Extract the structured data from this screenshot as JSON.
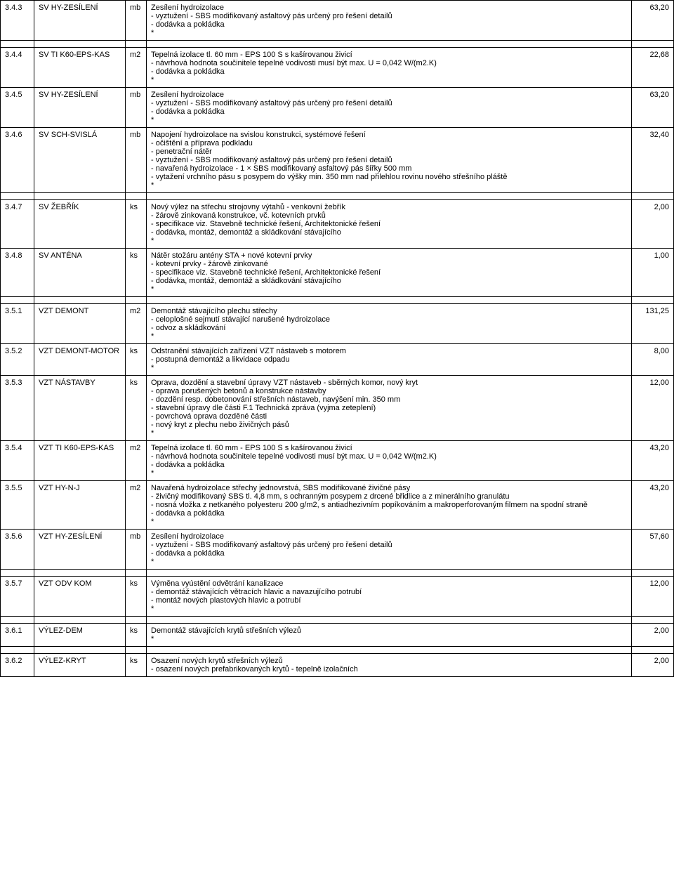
{
  "rows": [
    {
      "code": "3.4.3",
      "name": "SV HY-ZESÍLENÍ",
      "unit": "mb",
      "lines": [
        "Zesílení hydroizolace",
        "- vyztužení - SBS modifikovaný asfaltový pás určený pro řešení detailů",
        "- dodávka a pokládka",
        "*"
      ],
      "qty": "63,20"
    },
    {
      "code": "3.4.4",
      "name": "SV TI K60-EPS-KAS",
      "unit": "m2",
      "lines": [
        "Tepelná izolace tl. 60 mm - EPS 100 S s kašírovanou živicí",
        "- návrhová hodnota součinitele tepelné vodivosti musí být max. U = 0,042 W/(m2.K)",
        "- dodávka a pokládka",
        "*"
      ],
      "qty": "22,68"
    },
    {
      "code": "3.4.5",
      "name": "SV HY-ZESÍLENÍ",
      "unit": "mb",
      "lines": [
        "Zesílení hydroizolace",
        "- vyztužení - SBS modifikovaný asfaltový pás určený pro řešení detailů",
        "- dodávka a pokládka",
        "*"
      ],
      "qty": "63,20"
    },
    {
      "code": "3.4.6",
      "name": "SV SCH-SVISLÁ",
      "unit": "mb",
      "lines": [
        "Napojení hydroizolace na svislou konstrukci, systémové řešení",
        "- očištění a příprava podkladu",
        "- penetrační nátěr",
        "- vyztužení - SBS modifikovaný asfaltový pás určený pro řešení detailů",
        "- navařená hydroizolace - 1 × SBS modifikovaný asfaltový pás šířky 500 mm",
        "- vytažení vrchního pásu s posypem do výšky min. 350 mm nad přilehlou rovinu nového střešního pláště",
        "*"
      ],
      "qty": "32,40"
    },
    {
      "code": "3.4.7",
      "name": "SV ŽEBŘÍK",
      "unit": "ks",
      "lines": [
        "Nový výlez na střechu strojovny výtahů - venkovní žebřík",
        "- žárově zinkovaná konstrukce, vč. kotevních prvků",
        "- specifikace viz. Stavebně technické řešení, Architektonické řešení",
        "- dodávka, montáž, demontáž a skládkování stávajícího",
        "*"
      ],
      "qty": "2,00"
    },
    {
      "code": "3.4.8",
      "name": "SV ANTÉNA",
      "unit": "ks",
      "lines": [
        "Nátěr stožáru antény STA + nové kotevní prvky",
        "- kotevní prvky - žárově zinkované",
        "- specifikace viz. Stavebně technické řešení, Architektonické řešení",
        "- dodávka, montáž, demontáž a skládkování stávajícího",
        "*"
      ],
      "qty": "1,00"
    },
    {
      "code": "3.5.1",
      "name": "VZT DEMONT",
      "unit": "m2",
      "lines": [
        "Demontáž stávajícího plechu střechy",
        "- celoplošné sejmutí stávající narušené hydroizolace",
        "- odvoz a skládkování",
        "*"
      ],
      "qty": "131,25"
    },
    {
      "code": "3.5.2",
      "name": "VZT DEMONT-MOTOR",
      "unit": "ks",
      "lines": [
        "Odstranění stávajících zařízení VZT nástaveb s motorem",
        "- postupná demontáž a likvidace odpadu",
        "*"
      ],
      "qty": "8,00"
    },
    {
      "code": "3.5.3",
      "name": "VZT NÁSTAVBY",
      "unit": "ks",
      "lines": [
        "Oprava, dozdění a stavební úpravy VZT nástaveb - sběrných komor, nový kryt",
        "- oprava porušených betonů a konstrukce nástavby",
        "- dozdění resp. dobetonování střešních nástaveb, navýšení min. 350 mm",
        "- stavební úpravy dle části F.1 Technická zpráva (vyjma zeteplení)",
        "- povrchová oprava dozděné části",
        "- nový kryt z plechu nebo živičných pásů",
        "*"
      ],
      "qty": "12,00"
    },
    {
      "code": "3.5.4",
      "name": "VZT TI K60-EPS-KAS",
      "unit": "m2",
      "lines": [
        "Tepelná izolace tl. 60 mm - EPS 100 S s kašírovanou živicí",
        "- návrhová hodnota součinitele tepelné vodivosti musí být max. U = 0,042 W/(m2.K)",
        "- dodávka a pokládka",
        "*"
      ],
      "qty": "43,20"
    },
    {
      "code": "3.5.5",
      "name": "VZT HY-N-J",
      "unit": "m2",
      "lines": [
        "Navařená hydroizolace střechy jednovrstvá, SBS modifikované živičné pásy",
        "- živičný modifikovaný SBS tl. 4,8 mm, s ochranným posypem z drcené břidlice a z minerálního granulátu",
        "- nosná vložka z netkaného polyesteru 200 g/m2, s antiadhezivním popíkováním a makroperforovaným filmem na spodní straně",
        "- dodávka a pokládka",
        "*"
      ],
      "qty": "43,20"
    },
    {
      "code": "3.5.6",
      "name": "VZT HY-ZESÍLENÍ",
      "unit": "mb",
      "lines": [
        "Zesílení hydroizolace",
        "- vyztužení - SBS modifikovaný asfaltový pás určený pro řešení detailů",
        "- dodávka a pokládka",
        "*"
      ],
      "qty": "57,60"
    },
    {
      "code": "3.5.7",
      "name": "VZT ODV KOM",
      "unit": "ks",
      "lines": [
        "Výměna vyústění odvětrání kanalizace",
        "- demontáž stávajících větracích hlavic a navazujícího potrubí",
        "-  montáž nových plastových hlavic a potrubí",
        "*"
      ],
      "qty": "12,00"
    },
    {
      "code": "3.6.1",
      "name": "VÝLEZ-DEM",
      "unit": "ks",
      "lines": [
        "Demontáž stávajících krytů střešních výlezů",
        "*"
      ],
      "qty": "2,00"
    },
    {
      "code": "3.6.2",
      "name": "VÝLEZ-KRYT",
      "unit": "ks",
      "lines": [
        "Osazení nových krytů střešních výlezů",
        "- osazení nových prefabrikovaných krytů - tepelně izolačních"
      ],
      "qty": "2,00"
    }
  ]
}
